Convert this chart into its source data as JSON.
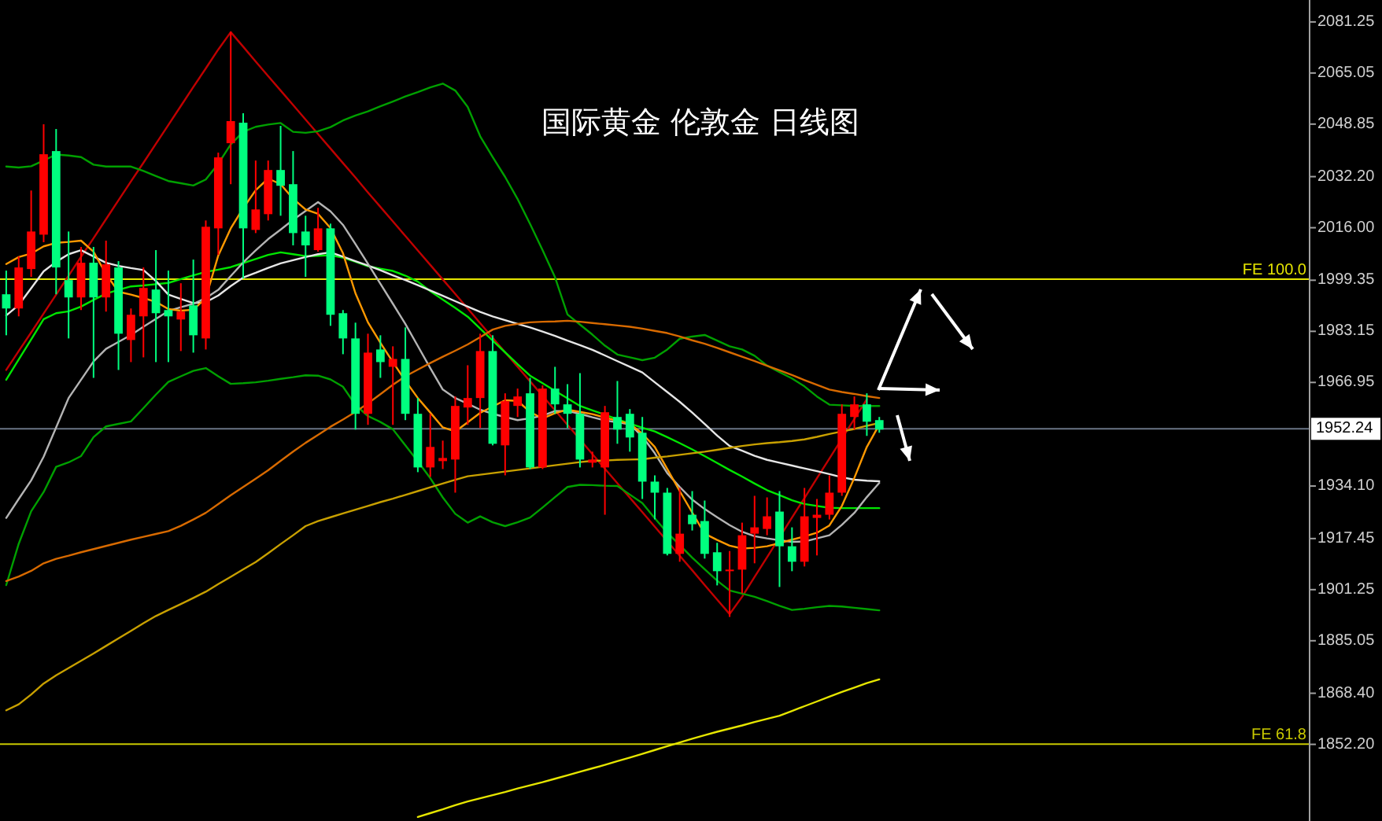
{
  "chart_data": {
    "type": "candlestick",
    "title": "国际黄金 伦敦金 日线图",
    "categories": [
      null,
      null,
      null,
      null,
      null,
      null,
      null,
      null,
      null,
      null,
      null,
      null,
      null,
      null,
      null,
      null,
      null,
      null,
      null,
      null,
      null,
      null,
      null,
      null,
      null,
      null,
      null,
      null,
      null,
      null,
      null,
      null,
      null,
      null,
      null,
      null,
      null,
      null,
      null,
      null,
      null,
      null,
      null,
      null,
      null,
      null,
      null,
      null,
      null,
      null,
      null,
      null,
      null,
      null,
      null,
      null,
      null,
      null,
      null,
      null,
      null,
      null,
      null,
      null,
      null,
      null,
      null,
      null,
      null,
      null,
      null,
      null,
      null,
      null,
      null,
      null,
      null,
      null,
      null,
      null,
      null,
      null,
      null,
      null,
      null,
      null,
      null,
      null,
      null,
      null,
      null,
      null,
      null,
      null,
      null,
      null,
      null,
      null,
      null,
      null,
      null,
      null,
      null,
      null,
      null
    ],
    "ohlc": [
      [
        1994.9,
        2002.4,
        1981.9,
        1990.4
      ],
      [
        1990.4,
        2006.9,
        1987.9,
        2003.4
      ],
      [
        2002.9,
        2027.8,
        2000.4,
        2014.8
      ],
      [
        2013.8,
        2048.8,
        2011.4,
        2039.3
      ],
      [
        2040.3,
        2047.3,
        1994.9,
        2003.4
      ],
      [
        1999.4,
        2014.8,
        1980.9,
        1993.9
      ],
      [
        1993.9,
        2009.9,
        1989.9,
        2004.9
      ],
      [
        2004.9,
        2009.9,
        1968.4,
        1993.9
      ],
      [
        1993.9,
        2011.9,
        1989.4,
        2004.4
      ],
      [
        2003.4,
        2005.4,
        1970.9,
        1982.4
      ],
      [
        1980.4,
        1990.4,
        1973.4,
        1988.4
      ],
      [
        1987.9,
        2003.4,
        1974.9,
        1996.9
      ],
      [
        1996.4,
        2008.9,
        1973.4,
        1988.9
      ],
      [
        1989.9,
        2002.4,
        1973.4,
        1987.9
      ],
      [
        1986.9,
        1998.4,
        1976.9,
        1989.4
      ],
      [
        1991.4,
        2005.9,
        1976.4,
        1981.9
      ],
      [
        1980.9,
        2018.3,
        1977.4,
        2016.3
      ],
      [
        2015.8,
        2039.8,
        2007.4,
        2038.3
      ],
      [
        2042.8,
        2078.2,
        2029.8,
        2049.8
      ],
      [
        2049.3,
        2052.3,
        1999.9,
        2015.8
      ],
      [
        2015.3,
        2037.3,
        2014.3,
        2021.8
      ],
      [
        2020.3,
        2037.3,
        2018.3,
        2034.3
      ],
      [
        2034.3,
        2048.3,
        2019.8,
        2029.3
      ],
      [
        2029.8,
        2040.3,
        2010.4,
        2014.3
      ],
      [
        2014.8,
        2019.8,
        2000.4,
        2010.4
      ],
      [
        2008.9,
        2022.3,
        2008.4,
        2015.8
      ],
      [
        2015.8,
        2017.3,
        1984.9,
        1988.4
      ],
      [
        1988.9,
        1989.9,
        1975.9,
        1980.9
      ],
      [
        1980.9,
        1985.9,
        1952.0,
        1957.0
      ],
      [
        1957.0,
        1982.4,
        1953.5,
        1976.4
      ],
      [
        1977.4,
        1981.9,
        1968.4,
        1973.4
      ],
      [
        1971.9,
        1978.4,
        1953.5,
        1974.4
      ],
      [
        1974.4,
        1984.4,
        1955.0,
        1957.0
      ],
      [
        1957.0,
        1962.0,
        1938.5,
        1940.0
      ],
      [
        1940.0,
        1957.0,
        1937.0,
        1946.5
      ],
      [
        1942.0,
        1948.5,
        1939.5,
        1943.0
      ],
      [
        1942.5,
        1962.5,
        1932.0,
        1959.5
      ],
      [
        1959.0,
        1972.4,
        1953.5,
        1962.0
      ],
      [
        1962.0,
        1982.4,
        1952.5,
        1976.9
      ],
      [
        1976.9,
        1981.9,
        1947.0,
        1947.5
      ],
      [
        1947.0,
        1963.5,
        1937.5,
        1961.0
      ],
      [
        1959.5,
        1965.0,
        1956.0,
        1962.5
      ],
      [
        1963.5,
        1968.4,
        1939.5,
        1940.0
      ],
      [
        1940.0,
        1966.0,
        1939.5,
        1965.0
      ],
      [
        1965.0,
        1971.9,
        1957.0,
        1960.0
      ],
      [
        1960.0,
        1966.4,
        1952.5,
        1957.0
      ],
      [
        1957.0,
        1969.9,
        1940.0,
        1942.5
      ],
      [
        1941.5,
        1945.0,
        1940.0,
        1942.5
      ],
      [
        1940.0,
        1959.5,
        1925.0,
        1957.5
      ],
      [
        1956.0,
        1967.4,
        1947.5,
        1952.0
      ],
      [
        1957.0,
        1958.5,
        1945.0,
        1949.5
      ],
      [
        1951.0,
        1956.0,
        1930.0,
        1935.5
      ],
      [
        1935.5,
        1937.5,
        1923.5,
        1932.0
      ],
      [
        1932.0,
        1933.5,
        1912.1,
        1912.6
      ],
      [
        1912.6,
        1933.5,
        1910.1,
        1919.0
      ],
      [
        1925.0,
        1932.5,
        1920.0,
        1922.0
      ],
      [
        1923.0,
        1929.5,
        1911.1,
        1912.6
      ],
      [
        1913.1,
        1916.1,
        1902.6,
        1907.1
      ],
      [
        1907.1,
        1913.5,
        1892.6,
        1907.6
      ],
      [
        1907.6,
        1922.5,
        1900.1,
        1918.5
      ],
      [
        1919.0,
        1931.0,
        1909.6,
        1921.0
      ],
      [
        1920.5,
        1930.5,
        1918.5,
        1924.5
      ],
      [
        1926.0,
        1932.5,
        1902.1,
        1915.0
      ],
      [
        1915.0,
        1921.0,
        1907.1,
        1910.1
      ],
      [
        1910.1,
        1933.5,
        1908.6,
        1924.5
      ],
      [
        1924.0,
        1930.0,
        1912.1,
        1925.0
      ],
      [
        1925.0,
        1937.5,
        1923.5,
        1932.0
      ],
      [
        1932.0,
        1960.0,
        1931.0,
        1957.0
      ],
      [
        1956.0,
        1962.5,
        1952.0,
        1960.0
      ],
      [
        1960.0,
        1963.5,
        1950.0,
        1954.5
      ],
      [
        1955.0,
        1956.0,
        1951.0,
        1952.0
      ],
      null,
      null,
      null,
      null,
      null,
      null,
      null,
      null,
      null,
      null,
      null,
      null,
      null,
      null,
      null,
      null,
      null,
      null,
      null,
      null,
      null,
      null,
      null,
      null,
      null,
      null,
      null,
      null,
      null,
      null,
      null,
      null,
      null,
      null
    ],
    "colors": [
      "#00ff7f",
      "#ff0000",
      "#ff0000",
      "#ff0000",
      "#00ff7f",
      "#00ff7f",
      "#ff0000",
      "#00ff7f",
      "#ff0000",
      "#00ff7f",
      "#ff0000",
      "#ff0000",
      "#00ff7f",
      "#00ff7f",
      "#ff0000",
      "#00ff7f",
      "#ff0000",
      "#ff0000",
      "#ff0000",
      "#00ff7f",
      "#ff0000",
      "#ff0000",
      "#00ff7f",
      "#00ff7f",
      "#00ff7f",
      "#ff0000",
      "#00ff7f",
      "#00ff7f",
      "#00ff7f",
      "#ff0000",
      "#00ff7f",
      "#ff0000",
      "#00ff7f",
      "#00ff7f",
      "#ff0000",
      "#ff0000",
      "#ff0000",
      "#ff0000",
      "#ff0000",
      "#00ff7f",
      "#ff0000",
      "#ff0000",
      "#00ff7f",
      "#ff0000",
      "#00ff7f",
      "#00ff7f",
      "#00ff7f",
      "#ff0000",
      "#ff0000",
      "#00ff7f",
      "#00ff7f",
      "#00ff7f",
      "#00ff7f",
      "#00ff7f",
      "#ff0000",
      "#00ff7f",
      "#00ff7f",
      "#00ff7f",
      "#ff0000",
      "#ff0000",
      "#ff0000",
      "#ff0000",
      "#00ff7f",
      "#00ff7f",
      "#ff0000",
      "#ff0000",
      "#ff0000",
      "#ff0000",
      "#ff0000",
      "#00ff7f",
      "#00ff7f",
      null,
      null,
      null,
      null,
      null,
      null,
      null,
      null,
      null,
      null,
      null,
      null,
      null,
      null,
      null,
      null,
      null,
      null,
      null,
      null,
      null,
      null,
      null,
      null,
      null,
      null,
      null,
      null,
      null,
      null,
      null,
      null,
      null,
      null
    ],
    "series": [
      {
        "type": "line",
        "color": "#c00000",
        "values": [
          1970.9,
          1976.9,
          1982.8,
          1988.8,
          1994.8,
          2000.8,
          2006.8,
          2012.7,
          2018.7,
          2024.7,
          2030.7,
          2036.6,
          2042.6,
          2048.6,
          2054.6,
          2060.6,
          2066.5,
          2072.5,
          2078.0,
          2073.4,
          2068.7,
          2064.1,
          2059.5,
          2054.9,
          2050.3,
          2045.7,
          2041.1,
          2036.5,
          2031.9,
          2027.2,
          2022.6,
          2018.0,
          2013.4,
          2008.8,
          2004.2,
          1999.6,
          1995.0,
          1990.4,
          1985.7,
          1981.1,
          1976.5,
          1971.9,
          1967.3,
          1962.7,
          1958.1,
          1953.5,
          1948.9,
          1944.2,
          1939.6,
          1935.0,
          1930.4,
          1925.8,
          1921.2,
          1916.6,
          1912.0,
          1907.4,
          1902.7,
          1898.1,
          1893.5,
          1899.0,
          1905.3,
          1911.5,
          1917.8,
          1924.1,
          1930.3,
          1936.6,
          1942.8,
          1949.1,
          1955.4,
          1961.6,
          null,
          null,
          null,
          null,
          null,
          null,
          null,
          null,
          null,
          null,
          null,
          null,
          null,
          null,
          null,
          null,
          null,
          null,
          null,
          null,
          null,
          null,
          null,
          null,
          null,
          null,
          null,
          null,
          null,
          null,
          null,
          null,
          null,
          null,
          null
        ]
      },
      {
        "type": "line",
        "color": "#00a000",
        "values": [
          2035.4,
          2035.1,
          2035.5,
          2037.3,
          2039.2,
          2038.9,
          2038.4,
          2036.0,
          2035.4,
          2035.4,
          2035.4,
          2034.0,
          2032.4,
          2030.8,
          2030.1,
          2029.4,
          2031.3,
          2036.3,
          2042.4,
          2046.4,
          2048.0,
          2048.7,
          2049.2,
          2046.4,
          2046.1,
          2046.6,
          2047.9,
          2050.0,
          2051.6,
          2052.9,
          2054.5,
          2056.0,
          2057.6,
          2059.0,
          2060.5,
          2061.7,
          2059.5,
          2054.3,
          2045.0,
          2038.4,
          2032.1,
          2025.1,
          2017.2,
          2008.9,
          2000.3,
          1988.5,
          1985.3,
          1982.1,
          1978.6,
          1975.8,
          1974.9,
          1974.0,
          1974.8,
          1977.4,
          1980.8,
          1981.5,
          1982.0,
          1980.2,
          1978.4,
          1977.4,
          1975.4,
          1972.3,
          1970.2,
          1968.2,
          1965.7,
          1962.5,
          1959.9,
          1959.7,
          1959.5,
          1959.5,
          1959.5,
          null,
          null,
          null,
          null,
          null,
          null,
          null,
          null,
          null,
          null,
          null,
          null,
          null,
          null,
          null,
          null,
          null,
          null,
          null,
          null,
          null,
          null,
          null,
          null,
          null,
          null,
          null,
          null,
          null,
          null,
          null,
          null,
          null,
          null
        ]
      },
      {
        "type": "line",
        "color": "#00e600",
        "values": [
          1967.8,
          1974.2,
          1980.6,
          1987.0,
          1988.9,
          1989.5,
          1991.0,
          1993.1,
          1995.1,
          1996.3,
          1997.4,
          1997.7,
          1998.1,
          1998.5,
          1999.7,
          2000.9,
          2002.0,
          2002.7,
          2003.5,
          2004.8,
          2006.1,
          2007.4,
          2008.2,
          2007.6,
          2007.0,
          2007.1,
          2007.3,
          2006.5,
          2005.2,
          2003.8,
          2003.0,
          2002.3,
          2000.8,
          1998.9,
          1995.9,
          1993.2,
          1990.6,
          1987.8,
          1984.0,
          1980.2,
          1976.5,
          1972.7,
          1969.1,
          1966.7,
          1964.3,
          1961.9,
          1959.5,
          1958.1,
          1956.7,
          1955.3,
          1953.9,
          1952.6,
          1951.4,
          1949.6,
          1947.7,
          1945.7,
          1943.6,
          1941.4,
          1939.2,
          1937.1,
          1934.9,
          1932.8,
          1931.2,
          1929.6,
          1928.4,
          1927.8,
          1927.2,
          1927.1,
          1927.1,
          1927.1,
          1927.1,
          null,
          null,
          null,
          null,
          null,
          null,
          null,
          null,
          null,
          null,
          null,
          null,
          null,
          null,
          null,
          null,
          null,
          null,
          null,
          null,
          null,
          null,
          null,
          null,
          null,
          null,
          null,
          null,
          null,
          null,
          null,
          null,
          null,
          null
        ]
      },
      {
        "type": "line",
        "color": "#00a000",
        "values": [
          1902.7,
          1915.8,
          1926.1,
          1932.2,
          1940.2,
          1941.6,
          1943.6,
          1949.6,
          1953.0,
          1953.8,
          1954.6,
          1958.8,
          1963.1,
          1967.1,
          1968.9,
          1970.6,
          1971.5,
          1968.9,
          1966.5,
          1966.7,
          1967.0,
          1967.5,
          1968.1,
          1968.6,
          1969.2,
          1969.1,
          1967.9,
          1965.6,
          1959.8,
          1956.3,
          1954.4,
          1952.1,
          1947.0,
          1941.9,
          1936.6,
          1930.5,
          1925.3,
          1922.5,
          1924.5,
          1922.6,
          1921.4,
          1922.6,
          1924.1,
          1927.3,
          1930.6,
          1933.8,
          1934.5,
          1934.4,
          1934.2,
          1934.1,
          1931.4,
          1928.7,
          1923.9,
          1919.3,
          1915.4,
          1911.4,
          1907.7,
          1904.1,
          1901.0,
          1900.0,
          1899.0,
          1897.6,
          1896.1,
          1894.8,
          1895.2,
          1895.7,
          1896.1,
          1895.9,
          1895.5,
          1895.1,
          1894.7,
          null,
          null,
          null,
          null,
          null,
          null,
          null,
          null,
          null,
          null,
          null,
          null,
          null,
          null,
          null,
          null,
          null,
          null,
          null,
          null,
          null,
          null,
          null,
          null,
          null,
          null,
          null,
          null,
          null,
          null,
          null,
          null,
          null,
          null
        ]
      },
      {
        "type": "line",
        "color": "#e6e6e6",
        "values": [
          1988.2,
          1991.5,
          1996.8,
          2002.2,
          2005.2,
          2007.6,
          2008.9,
          2006.9,
          2004.9,
          2003.9,
          2003.2,
          2002.6,
          1999.1,
          1994.8,
          1993.4,
          1992.1,
          1992.4,
          1994.5,
          1997.5,
          2000.2,
          2001.7,
          2003.3,
          2004.7,
          2005.7,
          2006.7,
          2007.6,
          2008.2,
          2006.8,
          2005.4,
          2004.0,
          2002.5,
          2000.9,
          1999.4,
          1997.8,
          1996.1,
          1994.4,
          1992.7,
          1991.0,
          1989.3,
          1987.9,
          1986.7,
          1985.5,
          1984.4,
          1983.1,
          1981.7,
          1980.2,
          1978.8,
          1977.3,
          1975.5,
          1973.7,
          1971.9,
          1970.1,
          1967.0,
          1963.9,
          1960.8,
          1957.4,
          1953.8,
          1950.1,
          1946.8,
          1945.3,
          1943.7,
          1942.4,
          1941.5,
          1940.6,
          1939.7,
          1938.8,
          1937.9,
          1936.9,
          1936.1,
          1935.8,
          1935.6,
          null,
          null,
          null,
          null,
          null,
          null,
          null,
          null,
          null,
          null,
          null,
          null,
          null,
          null,
          null,
          null,
          null,
          null,
          null,
          null,
          null,
          null,
          null,
          null,
          null,
          null,
          null,
          null,
          null,
          null,
          null,
          null,
          null,
          null
        ]
      },
      {
        "type": "line",
        "color": "#b4b4b4",
        "values": [
          1924.0,
          1930.0,
          1935.9,
          1943.4,
          1952.7,
          1962.0,
          1967.8,
          1973.6,
          1977.6,
          1979.8,
          1982.0,
          1984.6,
          1987.1,
          1989.6,
          1990.8,
          1991.9,
          1993.7,
          1996.3,
          2000.7,
          2005.0,
          2008.8,
          2012.4,
          2015.4,
          2018.5,
          2021.3,
          2024.1,
          2021.2,
          2016.9,
          2010.8,
          2004.6,
          1998.2,
          1991.9,
          1985.5,
          1978.5,
          1971.5,
          1964.7,
          1962.0,
          1960.2,
          1958.3,
          1957.0,
          1956.0,
          1955.0,
          1955.6,
          1956.4,
          1957.9,
          1957.9,
          1957.0,
          1955.9,
          1954.9,
          1954.3,
          1953.7,
          1949.8,
          1944.5,
          1938.2,
          1933.8,
          1929.8,
          1926.8,
          1924.2,
          1921.7,
          1919.6,
          1918.2,
          1917.5,
          1916.9,
          1916.4,
          1916.5,
          1917.5,
          1918.5,
          1921.8,
          1925.6,
          1930.6,
          1935.1,
          null,
          null,
          null,
          null,
          null,
          null,
          null,
          null,
          null,
          null,
          null,
          null,
          null,
          null,
          null,
          null,
          null,
          null,
          null,
          null,
          null,
          null,
          null,
          null,
          null,
          null,
          null,
          null,
          null,
          null,
          null,
          null,
          null,
          null
        ]
      },
      {
        "type": "line",
        "color": "#ff9900",
        "values": [
          2004.5,
          2006.7,
          2007.8,
          2010.1,
          2011.2,
          2011.5,
          2011.9,
          2008.4,
          2001.3,
          1995.7,
          1994.8,
          1993.7,
          1992.5,
          1990.2,
          1989.7,
          1990.0,
          1993.7,
          2007.2,
          2015.8,
          2022.2,
          2027.9,
          2031.6,
          2029.8,
          2025.2,
          2021.8,
          2020.4,
          2015.9,
          2007.9,
          1995.2,
          1986.0,
          1979.5,
          1973.4,
          1967.5,
          1962.0,
          1957.4,
          1952.7,
          1951.4,
          1954.3,
          1957.3,
          1959.3,
          1961.3,
          1961.1,
          1957.6,
          1955.5,
          1957.2,
          1958.3,
          1957.6,
          1956.9,
          1955.8,
          1954.8,
          1953.8,
          1950.7,
          1946.5,
          1939.5,
          1932.5,
          1925.7,
          1919.0,
          1917.0,
          1915.2,
          1914.3,
          1914.5,
          1915.0,
          1916.0,
          1917.1,
          1918.1,
          1919.3,
          1921.6,
          1927.8,
          1936.7,
          1946.5,
          1953.6,
          null,
          null,
          null,
          null,
          null,
          null,
          null,
          null,
          null,
          null,
          null,
          null,
          null,
          null,
          null,
          null,
          null,
          null,
          null,
          null,
          null,
          null,
          null,
          null,
          null,
          null,
          null,
          null,
          null,
          null,
          null,
          null,
          null,
          null
        ]
      },
      {
        "type": "line",
        "color": "#d86a00",
        "values": [
          1904.0,
          1905.4,
          1907.2,
          1909.6,
          1911.0,
          1912.0,
          1913.1,
          1914.1,
          1915.1,
          1916.1,
          1917.1,
          1918.0,
          1918.9,
          1919.8,
          1921.5,
          1923.5,
          1925.6,
          1928.4,
          1931.2,
          1933.8,
          1936.4,
          1939.1,
          1942.1,
          1945.0,
          1947.8,
          1950.3,
          1952.9,
          1955.2,
          1957.6,
          1960.3,
          1963.2,
          1966.2,
          1968.9,
          1971.0,
          1973.1,
          1975.1,
          1977.0,
          1979.0,
          1981.3,
          1983.7,
          1984.9,
          1985.5,
          1986.0,
          1986.2,
          1986.3,
          1986.5,
          1986.2,
          1985.8,
          1985.4,
          1985.0,
          1984.6,
          1984.0,
          1983.3,
          1982.6,
          1981.5,
          1980.3,
          1979.2,
          1977.9,
          1976.5,
          1975.1,
          1973.7,
          1972.2,
          1970.8,
          1969.3,
          1967.7,
          1966.2,
          1964.7,
          1963.9,
          1963.3,
          1962.6,
          1962.0,
          null,
          null,
          null,
          null,
          null,
          null,
          null,
          null,
          null,
          null,
          null,
          null,
          null,
          null,
          null,
          null,
          null,
          null,
          null,
          null,
          null,
          null,
          null,
          null,
          null,
          null,
          null,
          null,
          null,
          null,
          null,
          null,
          null,
          null
        ]
      },
      {
        "type": "line",
        "color": "#c8a000",
        "values": [
          1863.0,
          1864.9,
          1868.0,
          1871.5,
          1874.1,
          1876.4,
          1878.7,
          1881.0,
          1883.4,
          1885.8,
          1888.2,
          1890.6,
          1892.9,
          1894.8,
          1896.7,
          1898.6,
          1900.6,
          1903.0,
          1905.3,
          1907.7,
          1910.0,
          1912.8,
          1915.7,
          1918.5,
          1921.4,
          1923.0,
          1924.2,
          1925.4,
          1926.6,
          1927.8,
          1929.0,
          1930.1,
          1931.3,
          1932.5,
          1933.7,
          1934.9,
          1936.1,
          1937.2,
          1937.7,
          1938.2,
          1938.7,
          1939.2,
          1939.7,
          1940.2,
          1940.7,
          1941.2,
          1941.7,
          1942.1,
          1942.2,
          1942.4,
          1942.5,
          1942.6,
          1943.1,
          1943.5,
          1944.0,
          1944.5,
          1945.0,
          1945.6,
          1946.2,
          1946.8,
          1947.3,
          1947.7,
          1948.0,
          1948.4,
          1948.9,
          1949.7,
          1950.6,
          1951.4,
          1952.2,
          1953.2,
          1954.1,
          null,
          null,
          null,
          null,
          null,
          null,
          null,
          null,
          null,
          null,
          null,
          null,
          null,
          null,
          null,
          null,
          null,
          null,
          null,
          null,
          null,
          null,
          null,
          null,
          null,
          null,
          null,
          null,
          null,
          null,
          null,
          null,
          null,
          null
        ]
      },
      {
        "type": "line",
        "color": "#e6e600",
        "values": [
          null,
          null,
          null,
          null,
          null,
          null,
          null,
          null,
          null,
          null,
          null,
          null,
          null,
          null,
          null,
          null,
          null,
          null,
          null,
          null,
          null,
          null,
          null,
          null,
          null,
          null,
          null,
          null,
          null,
          null,
          null,
          null,
          null,
          1829.2,
          1830.4,
          1831.6,
          1832.9,
          1834.1,
          1835.1,
          1836.1,
          1837.1,
          1838.2,
          1839.2,
          1840.2,
          1841.3,
          1842.4,
          1843.5,
          1844.6,
          1845.7,
          1846.9,
          1848.0,
          1849.2,
          1850.4,
          1851.6,
          1852.8,
          1854.0,
          1855.1,
          1856.2,
          1857.2,
          1858.2,
          1859.3,
          1860.3,
          1861.3,
          1862.8,
          1864.3,
          1865.8,
          1867.3,
          1868.8,
          1870.2,
          1871.6,
          1872.8,
          null,
          null,
          null,
          null,
          null,
          null,
          null,
          null,
          null,
          null,
          null,
          null,
          null,
          null,
          null,
          null,
          null,
          null,
          null,
          null,
          null,
          null,
          null,
          null,
          null,
          null,
          null,
          null,
          null,
          null,
          null,
          null,
          null,
          null
        ]
      }
    ],
    "ylim": [
      1827.9,
      2088.2
    ],
    "yticks": [
      2081.25,
      2065.05,
      2048.85,
      {
        "value": 2032.2,
        "label": "2032.20"
      },
      {
        "value": 2016.0,
        "label": "2016.00"
      },
      1999.35,
      1983.15,
      1966.95,
      {
        "value": 1934.1,
        "label": "1934.10"
      },
      1917.45,
      1901.25,
      1885.05,
      {
        "value": 1868.4,
        "label": "1868.40"
      },
      {
        "value": 1852.2,
        "label": "1852.20"
      }
    ],
    "tick_labels": "y",
    "ref_lines": [
      {
        "axis": "y",
        "value": 1999.7,
        "label": "FE 100.0",
        "color": "#e6e600"
      },
      {
        "axis": "y",
        "value": 1852.3,
        "label": "FE 61.8",
        "color": "#c8c800"
      },
      {
        "axis": "y",
        "value": 1952.24,
        "label": "1952.24",
        "color": "#6a7585"
      }
    ]
  }
}
